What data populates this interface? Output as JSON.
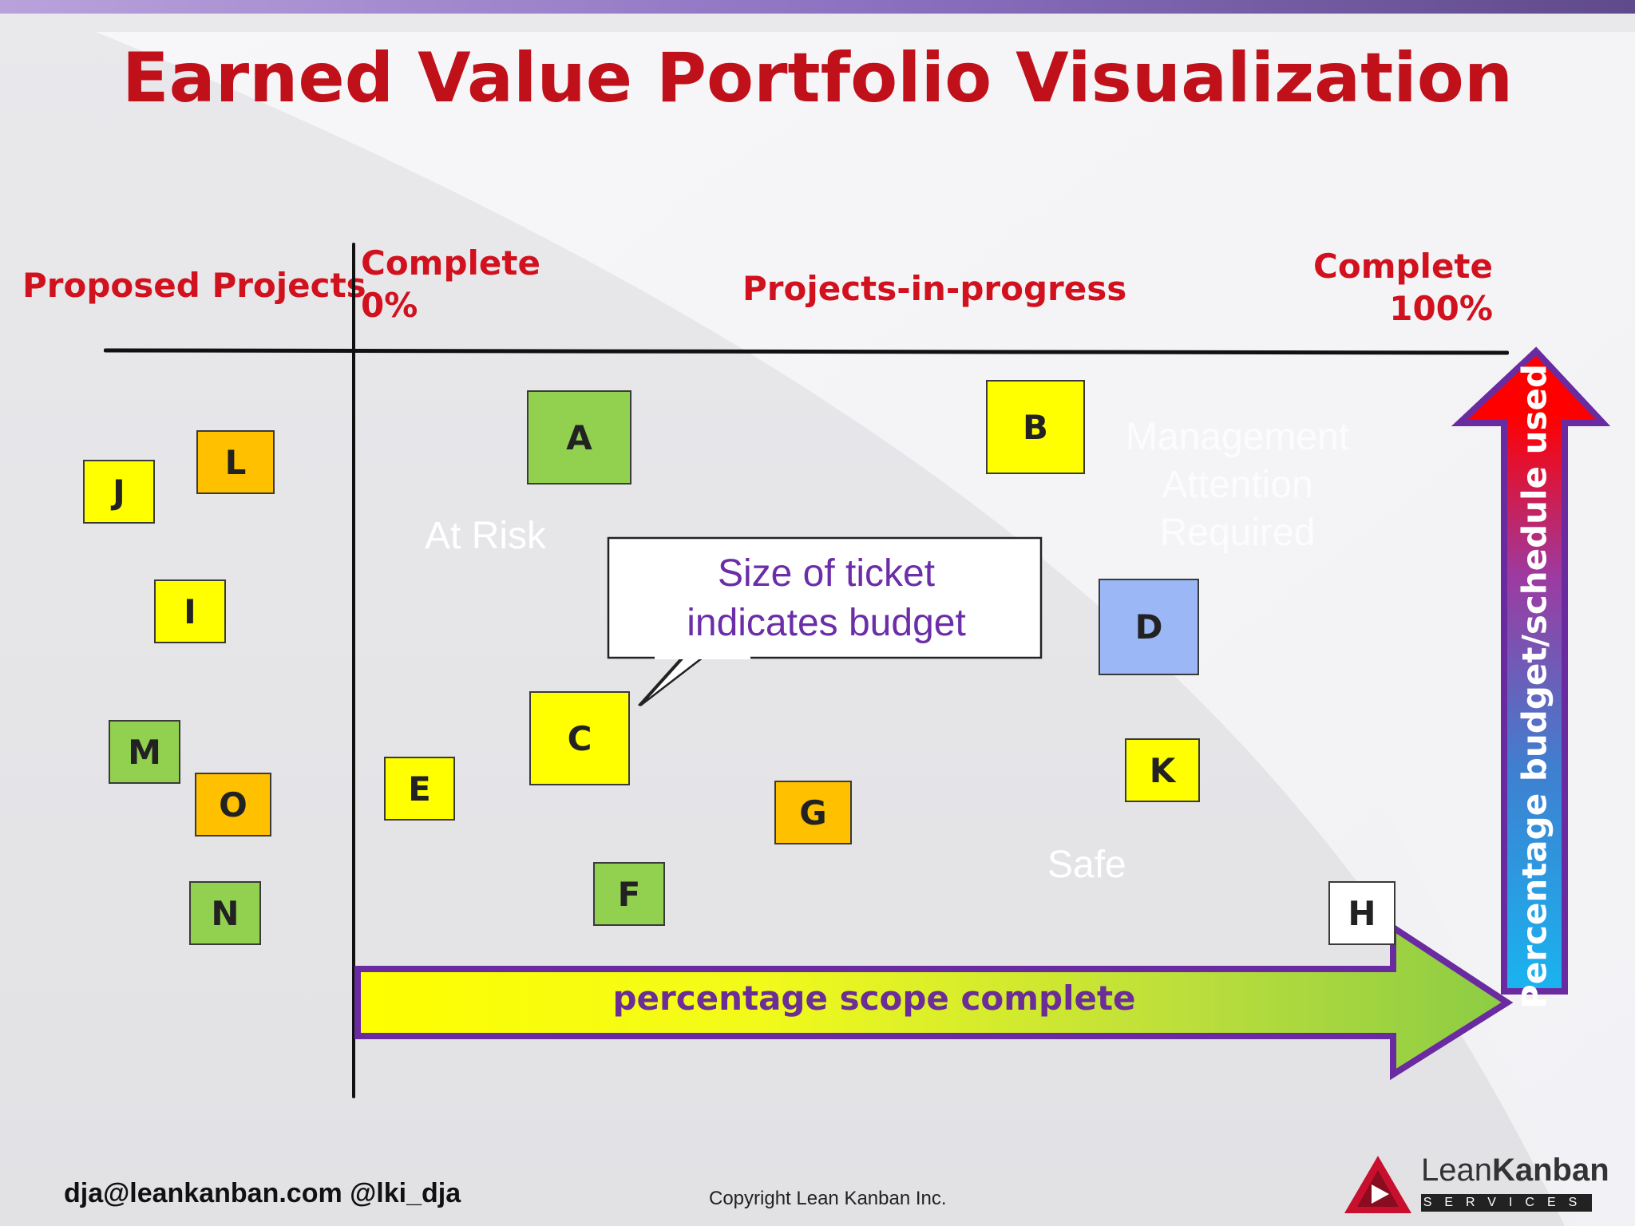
{
  "slide": {
    "title": "Earned Value Portfolio Visualization",
    "headers": {
      "proposed": "Proposed Projects",
      "complete_0_line1": "Complete",
      "complete_0_line2": "0%",
      "in_progress": "Projects-in-progress",
      "complete_100_line1": "Complete",
      "complete_100_line2": "100%"
    },
    "zones": {
      "at_risk": "At Risk",
      "management_line1": "Management",
      "management_line2": "Attention",
      "management_line3": "Required",
      "safe": "Safe"
    },
    "callout": {
      "line1": "Size of ticket",
      "line2": "indicates budget"
    },
    "arrows": {
      "horizontal": "percentage scope complete",
      "vertical": "Percentage budget/schedule used"
    },
    "tickets": [
      {
        "id": "J",
        "color": "#ffff00",
        "group": "proposed"
      },
      {
        "id": "L",
        "color": "#ffc000",
        "group": "proposed"
      },
      {
        "id": "I",
        "color": "#ffff00",
        "group": "proposed"
      },
      {
        "id": "M",
        "color": "#92d050",
        "group": "proposed"
      },
      {
        "id": "O",
        "color": "#ffc000",
        "group": "proposed"
      },
      {
        "id": "N",
        "color": "#92d050",
        "group": "proposed"
      },
      {
        "id": "A",
        "color": "#92d050",
        "group": "in-progress"
      },
      {
        "id": "B",
        "color": "#ffff00",
        "group": "in-progress"
      },
      {
        "id": "C",
        "color": "#ffff00",
        "group": "in-progress"
      },
      {
        "id": "D",
        "color": "#9bb7f5",
        "group": "in-progress"
      },
      {
        "id": "E",
        "color": "#ffff00",
        "group": "in-progress"
      },
      {
        "id": "F",
        "color": "#92d050",
        "group": "in-progress"
      },
      {
        "id": "G",
        "color": "#ffc000",
        "group": "in-progress"
      },
      {
        "id": "K",
        "color": "#ffff00",
        "group": "in-progress"
      },
      {
        "id": "H",
        "color": "#ffffff",
        "group": "in-progress"
      }
    ],
    "footer": {
      "contact": "dja@leankanban.com @lki_dja",
      "copyright": "Copyright Lean Kanban  Inc."
    },
    "logo": {
      "word_light": "Lean",
      "word_bold": "Kanban",
      "sub": "SERVICES"
    },
    "colors": {
      "title": "#c0101a",
      "headers": "#d1121e",
      "arrow_outline": "#6a2ba0",
      "callout_text": "#6b2da8"
    }
  }
}
